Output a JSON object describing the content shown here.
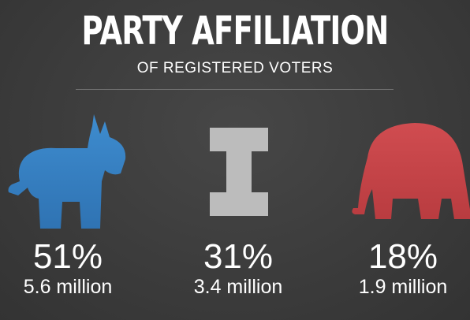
{
  "title": "PARTY AFFILIATION",
  "subtitle": "OF REGISTERED VOTERS",
  "colors": {
    "democrat": "#3b82c4",
    "independent": "#bdbdbd",
    "republican": "#c7474a",
    "background": "#3b3b3b",
    "text": "#ffffff"
  },
  "chart_data": {
    "type": "table",
    "title": "PARTY AFFILIATION",
    "subtitle": "OF REGISTERED VOTERS",
    "categories": [
      "donkey-icon",
      "independent-i-icon",
      "elephant-icon"
    ],
    "values": [
      51,
      31,
      18
    ],
    "rows": [
      {
        "icon": "donkey-icon",
        "percent": "51%",
        "count": "5.6 million",
        "color": "#3b82c4"
      },
      {
        "icon": "independent-i-icon",
        "percent": "31%",
        "count": "3.4 million",
        "color": "#bdbdbd"
      },
      {
        "icon": "elephant-icon",
        "percent": "18%",
        "count": "1.9 million",
        "color": "#c7474a"
      }
    ]
  }
}
